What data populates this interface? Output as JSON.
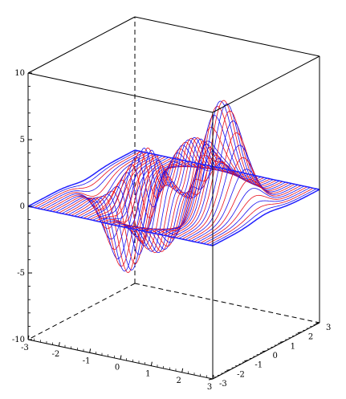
{
  "chart_data": {
    "type": "surface3d",
    "title": "",
    "function": "peaks",
    "zlim": [
      -10,
      10
    ],
    "xlim": [
      -3,
      3
    ],
    "ylim": [
      -3,
      3
    ],
    "z_ticks": [
      "10",
      "5",
      "0",
      "-5",
      "-10"
    ],
    "x_ticks": [
      "-3",
      "-2",
      "-1",
      "0",
      "1",
      "2",
      "3"
    ],
    "y_ticks": [
      "-3",
      "-2",
      "-1",
      "0",
      "1",
      "2",
      "3"
    ],
    "grid": false,
    "box": true,
    "line_color_a": "#e8101c",
    "line_color_b": "#1a10ee",
    "edge_color": "#2020ff",
    "peaks": [
      {
        "x": 0.0,
        "y": 1.6,
        "z": 8.1
      },
      {
        "x": 0.0,
        "y": -1.6,
        "z": -6.5
      },
      {
        "x": -0.5,
        "y": 0.0,
        "z": 3.8
      },
      {
        "x": 1.3,
        "y": 0.0,
        "z": 3.3
      }
    ]
  }
}
